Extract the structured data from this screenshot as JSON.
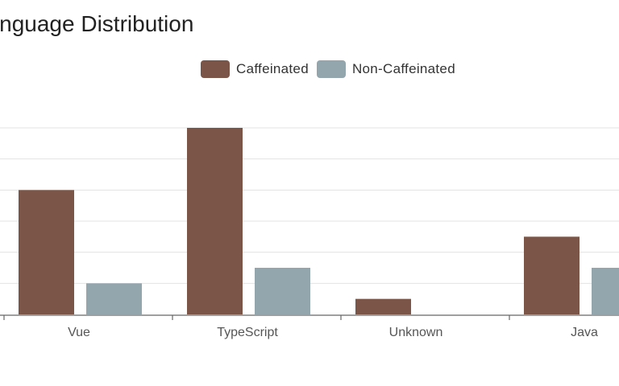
{
  "chart_data": {
    "type": "bar",
    "title": "Language Distribution",
    "categories": [
      "Vue",
      "TypeScript",
      "Unknown",
      "Java"
    ],
    "series": [
      {
        "name": "Caffeinated",
        "color": "#7b5547",
        "values": [
          4,
          6,
          0.5,
          2.5
        ]
      },
      {
        "name": "Non-Caffeinated",
        "color": "#93a6ad",
        "values": [
          1,
          1.5,
          0,
          1.5
        ]
      }
    ],
    "ylim": [
      0,
      6
    ],
    "grid": true,
    "legend_position": "top"
  }
}
